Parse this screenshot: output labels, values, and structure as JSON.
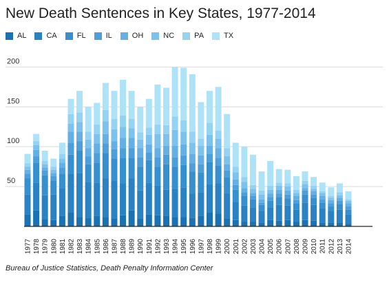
{
  "title": "New Death Sentences in Key States, 1977-2014",
  "source": "Bureau of Justice Statistics, Death Penalty Information Center",
  "colors": {
    "AL": "#1a72b3",
    "CA": "#2a81c3",
    "FL": "#3690d0",
    "IL": "#4d9fdb",
    "OH": "#64b0e4",
    "NC": "#7dc2ec",
    "PA": "#95d3f2",
    "TX": "#aee3f7",
    "grid": "#d9d9d9",
    "axis": "#222222"
  },
  "chart_data": {
    "type": "bar",
    "stacked": true,
    "ylim": [
      0,
      215
    ],
    "yticks": [
      50,
      100,
      150,
      200
    ],
    "grid": true,
    "legend_position": "top-left",
    "categories": [
      "1977",
      "1978",
      "1979",
      "1980",
      "1981",
      "1982",
      "1983",
      "1984",
      "1985",
      "1986",
      "1987",
      "1988",
      "1989",
      "1990",
      "1991",
      "1992",
      "1993",
      "1994",
      "1995",
      "1996",
      "1997",
      "1998",
      "1999",
      "2000",
      "2001",
      "2002",
      "2003",
      "2004",
      "2005",
      "2006",
      "2007",
      "2008",
      "2009",
      "2010",
      "2011",
      "2012",
      "2013",
      "2014"
    ],
    "series": [
      {
        "name": "AL",
        "values": [
          15,
          20,
          9,
          8,
          13,
          18,
          12,
          11,
          13,
          12,
          10,
          14,
          20,
          10,
          15,
          14,
          13,
          12,
          12,
          11,
          13,
          18,
          16,
          10,
          8,
          6,
          6,
          5,
          8,
          7,
          8,
          6,
          8,
          7,
          5,
          5,
          5,
          3
        ]
      },
      {
        "name": "CA",
        "values": [
          25,
          35,
          30,
          32,
          35,
          48,
          55,
          45,
          42,
          48,
          47,
          40,
          40,
          35,
          40,
          37,
          33,
          35,
          37,
          30,
          30,
          35,
          38,
          32,
          23,
          20,
          18,
          14,
          16,
          20,
          18,
          15,
          22,
          20,
          18,
          14,
          16,
          12
        ]
      },
      {
        "name": "FL",
        "values": [
          20,
          25,
          25,
          17,
          18,
          24,
          28,
          22,
          25,
          32,
          28,
          32,
          26,
          30,
          28,
          24,
          32,
          28,
          28,
          28,
          25,
          28,
          22,
          20,
          15,
          12,
          10,
          8,
          8,
          10,
          9,
          8,
          10,
          9,
          7,
          6,
          7,
          6
        ]
      },
      {
        "name": "IL",
        "values": [
          6,
          8,
          6,
          6,
          8,
          15,
          12,
          10,
          12,
          12,
          12,
          12,
          12,
          12,
          10,
          12,
          12,
          12,
          12,
          10,
          10,
          10,
          10,
          8,
          6,
          5,
          4,
          3,
          5,
          4,
          5,
          4,
          5,
          4,
          4,
          4,
          4,
          4
        ]
      },
      {
        "name": "OH",
        "values": [
          5,
          8,
          4,
          4,
          6,
          14,
          12,
          10,
          12,
          12,
          10,
          13,
          13,
          11,
          10,
          11,
          11,
          14,
          14,
          12,
          11,
          10,
          12,
          8,
          7,
          5,
          4,
          4,
          4,
          5,
          5,
          5,
          3,
          4,
          4,
          4,
          4,
          4
        ]
      },
      {
        "name": "NC",
        "values": [
          4,
          6,
          4,
          4,
          5,
          10,
          12,
          11,
          12,
          16,
          15,
          14,
          12,
          11,
          12,
          18,
          15,
          20,
          16,
          14,
          12,
          14,
          12,
          10,
          9,
          8,
          5,
          6,
          5,
          5,
          5,
          4,
          5,
          3,
          4,
          3,
          3,
          3
        ]
      },
      {
        "name": "PA",
        "values": [
          4,
          5,
          4,
          4,
          6,
          12,
          12,
          10,
          12,
          14,
          13,
          14,
          12,
          9,
          9,
          12,
          11,
          17,
          14,
          14,
          9,
          15,
          10,
          10,
          7,
          6,
          5,
          5,
          5,
          4,
          4,
          4,
          4,
          4,
          2,
          2,
          4,
          2
        ]
      },
      {
        "name": "TX",
        "values": [
          12,
          9,
          13,
          10,
          14,
          19,
          27,
          31,
          27,
          34,
          35,
          45,
          35,
          32,
          36,
          50,
          47,
          62,
          66,
          72,
          46,
          40,
          55,
          43,
          30,
          38,
          38,
          24,
          31,
          17,
          17,
          17,
          12,
          11,
          11,
          11,
          11,
          10
        ]
      }
    ]
  }
}
